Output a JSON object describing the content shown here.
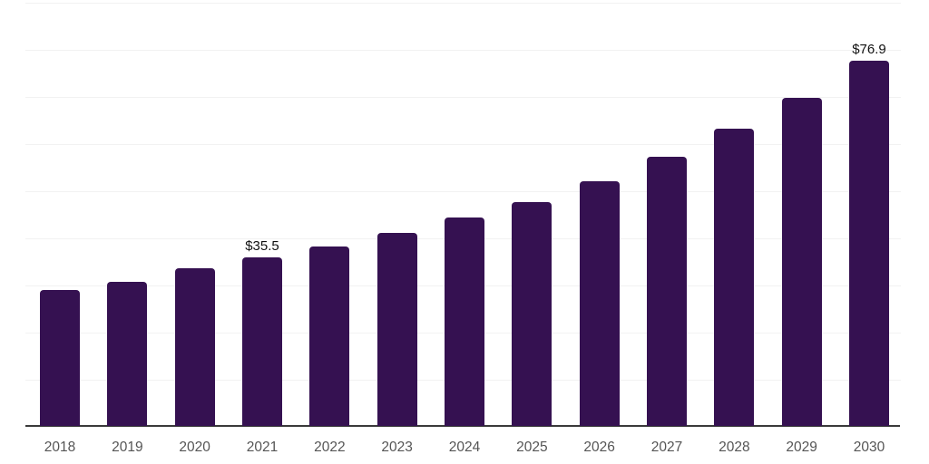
{
  "chart": {
    "background_color": "#ffffff",
    "bar_color": "#351151",
    "axis_color": "#3a3a3a",
    "gridline_color": "#f2f2f2",
    "x_label_color": "#555555",
    "data_label_color": "#111111"
  },
  "chart_data": {
    "type": "bar",
    "title": "",
    "xlabel": "",
    "ylabel": "",
    "legend": "none",
    "grid": "horizontal",
    "grid_step": 10,
    "ylim": [
      0,
      90
    ],
    "categories": [
      "2018",
      "2019",
      "2020",
      "2021",
      "2022",
      "2023",
      "2024",
      "2025",
      "2026",
      "2027",
      "2028",
      "2029",
      "2030"
    ],
    "values": [
      28.7,
      30.4,
      33.2,
      35.5,
      37.8,
      40.7,
      43.9,
      47.2,
      51.6,
      56.8,
      62.6,
      69.2,
      76.9
    ],
    "data_labels": [
      null,
      null,
      null,
      "$35.5",
      null,
      null,
      null,
      null,
      null,
      null,
      null,
      null,
      "$76.9"
    ]
  }
}
